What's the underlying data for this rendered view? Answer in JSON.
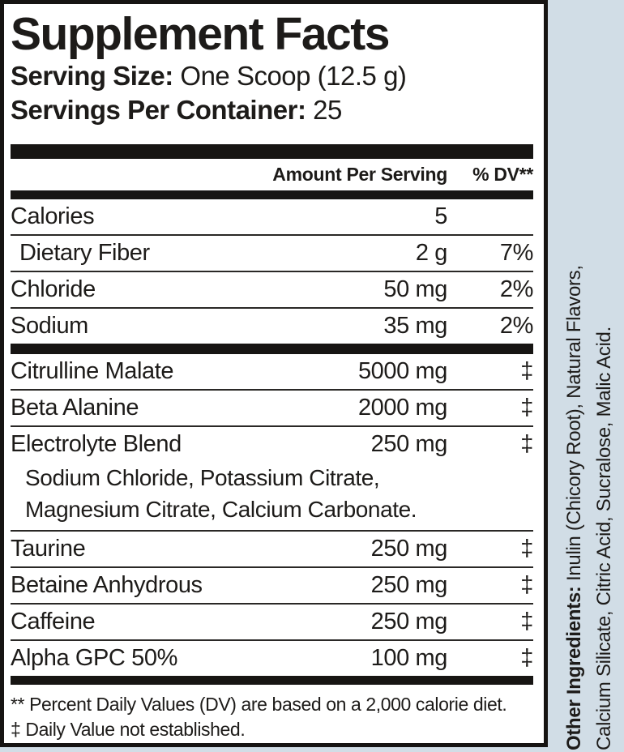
{
  "panel": {
    "title": "Supplement Facts",
    "serving_size_label": "Serving Size:",
    "serving_size_value": " One Scoop (12.5 g)",
    "servings_per_container_label": "Servings Per Container:",
    "servings_per_container_value": " 25",
    "column_header": {
      "amount": "Amount Per Serving",
      "dv": "% DV**"
    },
    "daily_rows": [
      {
        "name": "Calories",
        "amount": "5",
        "dv": ""
      },
      {
        "name": "Dietary Fiber",
        "amount": "2 g",
        "dv": "7%"
      },
      {
        "name": "Chloride",
        "amount": "50 mg",
        "dv": "2%"
      },
      {
        "name": "Sodium",
        "amount": "35 mg",
        "dv": "2%"
      }
    ],
    "supplement_rows": [
      {
        "name": "Citrulline Malate",
        "amount": "5000 mg",
        "dv": "‡"
      },
      {
        "name": "Beta Alanine",
        "amount": "2000 mg",
        "dv": "‡"
      },
      {
        "name": "Electrolyte Blend",
        "amount": "250 mg",
        "dv": "‡"
      },
      {
        "name": "Taurine",
        "amount": "250 mg",
        "dv": "‡"
      },
      {
        "name": "Betaine Anhydrous",
        "amount": "250 mg",
        "dv": "‡"
      },
      {
        "name": "Caffeine",
        "amount": "250 mg",
        "dv": "‡"
      },
      {
        "name": "Alpha GPC 50%",
        "amount": "100 mg",
        "dv": "‡"
      }
    ],
    "blend_sublines": [
      "Sodium Chloride, Potassium Citrate,",
      "Magnesium Citrate, Calcium Carbonate."
    ],
    "footnotes": [
      "** Percent Daily Values (DV) are based on a 2,000 calorie diet.",
      "‡ Daily Value not established."
    ]
  },
  "side_text": {
    "label": "Other Ingredients:",
    "line1_rest": " Inulin (Chicory Root), Natural Flavors,",
    "line2": "Calcium Silicate, Citric Acid, Sucralose, Malic Acid."
  },
  "colors": {
    "background": "#d1dde6",
    "panel_background": "#ffffff",
    "ink": "#1d1b19"
  }
}
